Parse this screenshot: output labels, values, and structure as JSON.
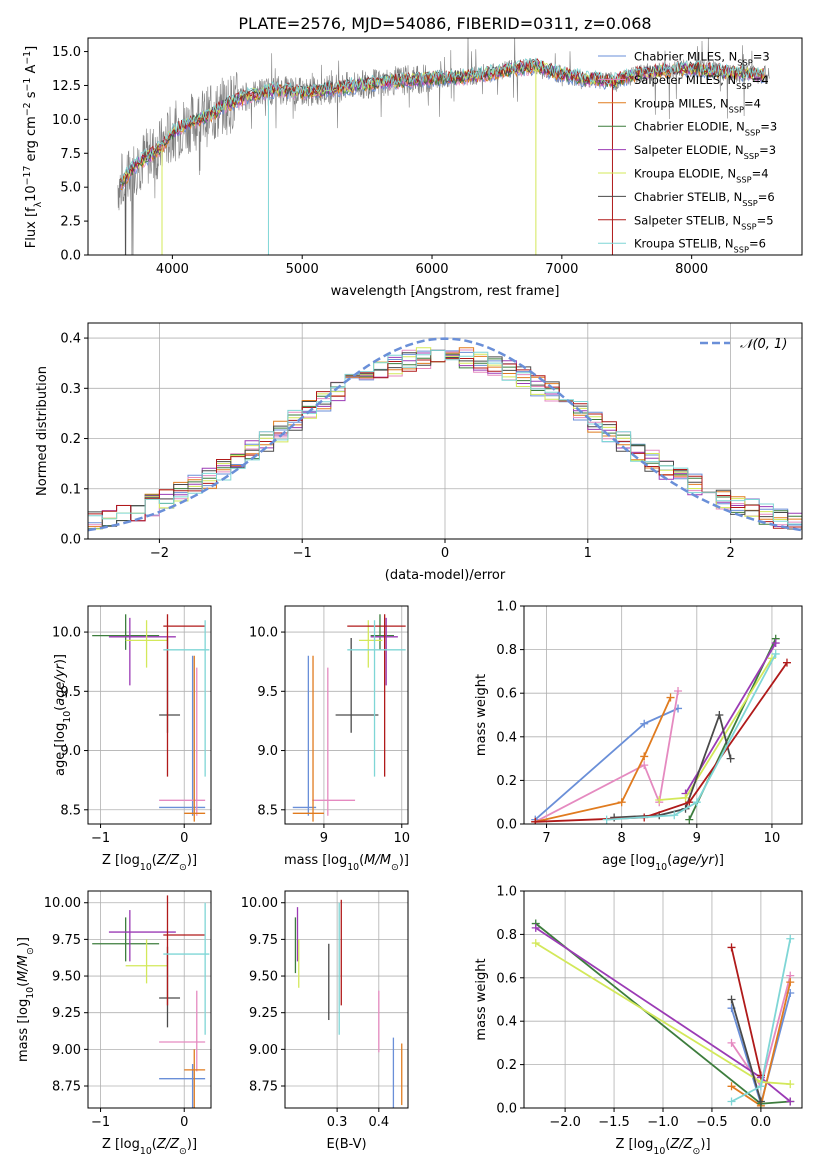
{
  "title": "PLATE=2576, MJD=54086, FIBERID=0311, z=0.068",
  "colors": {
    "Chabrier MILES": "#6a8fd8",
    "Salpeter MILES": "#e58ac0",
    "Kroupa MILES": "#e07b1f",
    "Chabrier ELODIE": "#3d7d3d",
    "Salpeter ELODIE": "#9b3bb5",
    "Kroupa ELODIE": "#d3e85a",
    "Chabrier STELIB": "#4a4a4a",
    "Salpeter STELIB": "#b01a1a",
    "Kroupa STELIB": "#7fd6d6",
    "data": "#808080",
    "normal": "#6a8fd8"
  },
  "chart_data": [
    {
      "id": "spectrum",
      "type": "line",
      "xlabel": "wavelength [Angstrom, rest frame]",
      "ylabel": "Flux [f_λ10^-17 erg cm^-2 s^-1 A^-1]",
      "xlim": [
        3350,
        8850
      ],
      "ylim": [
        0,
        16
      ],
      "grid": false,
      "legend": "right",
      "xticks": [
        4000,
        5000,
        6000,
        7000,
        8000
      ],
      "yticks": [
        0.0,
        2.5,
        5.0,
        7.5,
        10.0,
        12.5,
        15.0
      ],
      "legend_entries": [
        "Chabrier MILES, N_SSP=3",
        "Salpeter MILES, N_SSP=4",
        "Kroupa MILES, N_SSP=4",
        "Chabrier ELODIE, N_SSP=3",
        "Salpeter ELODIE, N_SSP=3",
        "Kroupa ELODIE, N_SSP=4",
        "Chabrier STELIB, N_SSP=6",
        "Salpeter STELIB, N_SSP=5",
        "Kroupa STELIB, N_SSP=6"
      ],
      "model_continuum": {
        "x": [
          3600,
          3700,
          3800,
          3900,
          4000,
          4100,
          4200,
          4300,
          4400,
          4600,
          4800,
          5000,
          5200,
          5400,
          5600,
          5800,
          6000,
          6200,
          6400,
          6600,
          6800,
          7000,
          7200,
          7400,
          7600,
          7800,
          8000,
          8200,
          8500
        ],
        "y": [
          5.2,
          6.5,
          7.2,
          7.8,
          9.0,
          9.6,
          10.0,
          10.3,
          11.0,
          11.8,
          12.2,
          12.0,
          12.2,
          12.5,
          12.7,
          12.9,
          13.0,
          13.1,
          13.3,
          13.7,
          13.9,
          13.3,
          13.0,
          12.8,
          13.4,
          13.6,
          13.8,
          13.5,
          13.3
        ]
      }
    },
    {
      "id": "residuals",
      "type": "line",
      "xlabel": "(data-model)/error",
      "ylabel": "Normed distribution",
      "xlim": [
        -2.5,
        2.5
      ],
      "ylim": [
        0,
        0.43
      ],
      "grid": true,
      "legend": "top-right",
      "xticks": [
        -2,
        -1,
        0,
        1,
        2
      ],
      "yticks": [
        0.0,
        0.1,
        0.2,
        0.3,
        0.4
      ],
      "legend_entries": [
        "𝒩(0, 1)"
      ]
    },
    {
      "id": "age-Z",
      "type": "scatter",
      "xlabel": "Z [log10(Z/Z⊙)]",
      "ylabel": "age  [log10(age/yr)]",
      "xlim": [
        -1.15,
        0.32
      ],
      "ylim": [
        8.38,
        10.22
      ],
      "grid": true,
      "xticks": [
        -1,
        0
      ],
      "yticks": [
        8.5,
        9.0,
        9.5,
        10.0
      ],
      "points": [
        {
          "model": "Chabrier MILES",
          "x": 0.1,
          "y": 8.52,
          "xlo": -0.3,
          "xhi": 0.25,
          "ylo": 8.45,
          "yhi": 9.8
        },
        {
          "model": "Salpeter MILES",
          "x": 0.15,
          "y": 8.58,
          "xlo": -0.3,
          "xhi": 0.25,
          "ylo": 8.45,
          "yhi": 9.7
        },
        {
          "model": "Kroupa MILES",
          "x": 0.12,
          "y": 8.47,
          "xlo": 0.0,
          "xhi": 0.25,
          "ylo": 8.4,
          "yhi": 9.8
        },
        {
          "model": "Chabrier ELODIE",
          "x": -0.7,
          "y": 9.97,
          "xlo": -1.1,
          "xhi": -0.3,
          "ylo": 9.85,
          "yhi": 10.15
        },
        {
          "model": "Salpeter ELODIE",
          "x": -0.65,
          "y": 9.96,
          "xlo": -0.9,
          "xhi": -0.1,
          "ylo": 9.55,
          "yhi": 10.12
        },
        {
          "model": "Kroupa ELODIE",
          "x": -0.45,
          "y": 9.93,
          "xlo": -0.7,
          "xhi": -0.2,
          "ylo": 9.7,
          "yhi": 10.1
        },
        {
          "model": "Chabrier STELIB",
          "x": -0.2,
          "y": 9.3,
          "xlo": -0.3,
          "xhi": -0.05,
          "ylo": 9.15,
          "yhi": 9.95
        },
        {
          "model": "Salpeter STELIB",
          "x": -0.2,
          "y": 10.05,
          "xlo": -0.25,
          "xhi": 0.25,
          "ylo": 8.78,
          "yhi": 10.15
        },
        {
          "model": "Kroupa STELIB",
          "x": 0.25,
          "y": 9.85,
          "xlo": -0.25,
          "xhi": 0.3,
          "ylo": 8.78,
          "yhi": 10.1
        }
      ]
    },
    {
      "id": "age-mass",
      "type": "scatter",
      "xlabel": "mass [log10(M/M⊙)]",
      "ylabel": "",
      "xlim": [
        8.5,
        10.08
      ],
      "ylim": [
        8.38,
        10.22
      ],
      "grid": true,
      "xticks": [
        9,
        10
      ],
      "yticks": [
        8.5,
        9.0,
        9.5,
        10.0
      ],
      "points": [
        {
          "model": "Chabrier MILES",
          "x": 8.8,
          "y": 8.52,
          "xlo": 8.6,
          "xhi": 8.9,
          "ylo": 8.45,
          "yhi": 9.8
        },
        {
          "model": "Salpeter MILES",
          "x": 9.05,
          "y": 8.58,
          "xlo": 8.85,
          "xhi": 9.4,
          "ylo": 8.45,
          "yhi": 9.7
        },
        {
          "model": "Kroupa MILES",
          "x": 8.86,
          "y": 8.47,
          "xlo": 8.6,
          "xhi": 9.0,
          "ylo": 8.4,
          "yhi": 9.8
        },
        {
          "model": "Chabrier ELODIE",
          "x": 9.72,
          "y": 9.97,
          "xlo": 9.6,
          "xhi": 9.9,
          "ylo": 9.85,
          "yhi": 10.15
        },
        {
          "model": "Salpeter ELODIE",
          "x": 9.8,
          "y": 9.96,
          "xlo": 9.6,
          "xhi": 9.95,
          "ylo": 9.55,
          "yhi": 10.12
        },
        {
          "model": "Kroupa ELODIE",
          "x": 9.57,
          "y": 9.93,
          "xlo": 9.45,
          "xhi": 9.75,
          "ylo": 9.7,
          "yhi": 10.1
        },
        {
          "model": "Chabrier STELIB",
          "x": 9.35,
          "y": 9.3,
          "xlo": 9.15,
          "xhi": 9.7,
          "ylo": 9.15,
          "yhi": 9.95
        },
        {
          "model": "Salpeter STELIB",
          "x": 9.78,
          "y": 10.05,
          "xlo": 9.3,
          "xhi": 10.05,
          "ylo": 8.78,
          "yhi": 10.15
        },
        {
          "model": "Kroupa STELIB",
          "x": 9.65,
          "y": 9.85,
          "xlo": 9.3,
          "xhi": 10.05,
          "ylo": 8.78,
          "yhi": 10.1
        }
      ]
    },
    {
      "id": "weight-age",
      "type": "line",
      "xlabel": "age  [log10(age/yr)]",
      "ylabel": "mass weight",
      "xlim": [
        6.7,
        10.4
      ],
      "ylim": [
        0,
        1.0
      ],
      "grid": true,
      "xticks": [
        7,
        8,
        9,
        10
      ],
      "yticks": [
        0.0,
        0.2,
        0.4,
        0.6,
        0.8,
        1.0
      ],
      "series": [
        {
          "name": "Chabrier MILES",
          "x": [
            6.85,
            8.3,
            8.75
          ],
          "y": [
            0.02,
            0.46,
            0.53
          ]
        },
        {
          "name": "Salpeter MILES",
          "x": [
            6.85,
            8.3,
            8.5,
            8.75
          ],
          "y": [
            0.01,
            0.27,
            0.1,
            0.61
          ]
        },
        {
          "name": "Kroupa MILES",
          "x": [
            6.85,
            8.0,
            8.3,
            8.65
          ],
          "y": [
            0.01,
            0.1,
            0.31,
            0.58
          ]
        },
        {
          "name": "Chabrier ELODIE",
          "x": [
            8.9,
            10.05
          ],
          "y": [
            0.02,
            0.85
          ]
        },
        {
          "name": "Salpeter ELODIE",
          "x": [
            8.85,
            10.05
          ],
          "y": [
            0.14,
            0.83
          ]
        },
        {
          "name": "Kroupa ELODIE",
          "x": [
            8.5,
            8.85,
            10.0
          ],
          "y": [
            0.11,
            0.12,
            0.76
          ]
        },
        {
          "name": "Chabrier STELIB",
          "x": [
            7.9,
            8.5,
            8.85,
            9.3,
            9.45
          ],
          "y": [
            0.03,
            0.04,
            0.07,
            0.5,
            0.3
          ]
        },
        {
          "name": "Salpeter STELIB",
          "x": [
            6.85,
            8.3,
            8.9,
            10.2
          ],
          "y": [
            0.01,
            0.03,
            0.1,
            0.74
          ]
        },
        {
          "name": "Kroupa STELIB",
          "x": [
            7.8,
            8.7,
            9.0,
            10.05
          ],
          "y": [
            0.02,
            0.04,
            0.1,
            0.78
          ]
        }
      ]
    },
    {
      "id": "mass-Z",
      "type": "scatter",
      "xlabel": "Z [log10(Z/Z⊙)]",
      "ylabel": "mass [log10(M/M⊙)]",
      "xlim": [
        -1.15,
        0.32
      ],
      "ylim": [
        8.6,
        10.08
      ],
      "grid": true,
      "xticks": [
        -1,
        0
      ],
      "yticks": [
        8.75,
        9.0,
        9.25,
        9.5,
        9.75,
        10.0
      ],
      "points": [
        {
          "model": "Chabrier MILES",
          "x": 0.1,
          "y": 8.8,
          "xlo": -0.3,
          "xhi": 0.25,
          "ylo": 8.6,
          "yhi": 8.9
        },
        {
          "model": "Salpeter MILES",
          "x": 0.15,
          "y": 9.05,
          "xlo": -0.3,
          "xhi": 0.25,
          "ylo": 8.85,
          "yhi": 9.4
        },
        {
          "model": "Kroupa MILES",
          "x": 0.12,
          "y": 8.86,
          "xlo": 0.0,
          "xhi": 0.25,
          "ylo": 8.6,
          "yhi": 9.0
        },
        {
          "model": "Chabrier ELODIE",
          "x": -0.7,
          "y": 9.72,
          "xlo": -1.1,
          "xhi": -0.3,
          "ylo": 9.6,
          "yhi": 9.9
        },
        {
          "model": "Salpeter ELODIE",
          "x": -0.65,
          "y": 9.8,
          "xlo": -0.9,
          "xhi": -0.1,
          "ylo": 9.6,
          "yhi": 9.95
        },
        {
          "model": "Kroupa ELODIE",
          "x": -0.45,
          "y": 9.57,
          "xlo": -0.7,
          "xhi": -0.2,
          "ylo": 9.45,
          "yhi": 9.75
        },
        {
          "model": "Chabrier STELIB",
          "x": -0.2,
          "y": 9.35,
          "xlo": -0.3,
          "xhi": -0.05,
          "ylo": 9.15,
          "yhi": 9.7
        },
        {
          "model": "Salpeter STELIB",
          "x": -0.2,
          "y": 9.78,
          "xlo": -0.25,
          "xhi": 0.25,
          "ylo": 9.3,
          "yhi": 10.05
        },
        {
          "model": "Kroupa STELIB",
          "x": 0.25,
          "y": 9.65,
          "xlo": -0.25,
          "xhi": 0.3,
          "ylo": 9.1,
          "yhi": 10.0
        }
      ]
    },
    {
      "id": "mass-EBV",
      "type": "scatter",
      "xlabel": "E(B-V)",
      "ylabel": "",
      "xlim": [
        0.175,
        0.47
      ],
      "ylim": [
        8.6,
        10.08
      ],
      "grid": true,
      "xticks": [
        0.3,
        0.4
      ],
      "yticks": [
        8.75,
        9.0,
        9.25,
        9.5,
        9.75,
        10.0
      ],
      "points": [
        {
          "model": "Chabrier MILES",
          "x": 0.435,
          "y": 8.8,
          "ylo": 8.6,
          "yhi": 9.08
        },
        {
          "model": "Salpeter MILES",
          "x": 0.4,
          "y": 9.05,
          "ylo": 8.98,
          "yhi": 9.4
        },
        {
          "model": "Kroupa MILES",
          "x": 0.455,
          "y": 8.86,
          "ylo": 8.62,
          "yhi": 9.04
        },
        {
          "model": "Chabrier ELODIE",
          "x": 0.2,
          "y": 9.72,
          "ylo": 9.52,
          "yhi": 9.9
        },
        {
          "model": "Salpeter ELODIE",
          "x": 0.205,
          "y": 9.8,
          "ylo": 9.6,
          "yhi": 9.97
        },
        {
          "model": "Kroupa ELODIE",
          "x": 0.208,
          "y": 9.57,
          "ylo": 9.42,
          "yhi": 9.75
        },
        {
          "model": "Chabrier STELIB",
          "x": 0.28,
          "y": 9.35,
          "ylo": 9.2,
          "yhi": 9.72
        },
        {
          "model": "Salpeter STELIB",
          "x": 0.31,
          "y": 9.78,
          "ylo": 9.3,
          "yhi": 10.02
        },
        {
          "model": "Kroupa STELIB",
          "x": 0.305,
          "y": 9.65,
          "ylo": 9.1,
          "yhi": 10.0
        }
      ]
    },
    {
      "id": "weight-Z",
      "type": "line",
      "xlabel": "Z [log10(Z/Z⊙)]",
      "ylabel": "mass weight",
      "xlim": [
        -2.42,
        0.42
      ],
      "ylim": [
        0,
        1.0
      ],
      "grid": true,
      "xticks": [
        -2.0,
        -1.5,
        -1.0,
        -0.5,
        0.0
      ],
      "yticks": [
        0.0,
        0.2,
        0.4,
        0.6,
        0.8,
        1.0
      ],
      "series": [
        {
          "name": "Chabrier MILES",
          "x": [
            -0.3,
            0.0,
            0.3
          ],
          "y": [
            0.46,
            0.02,
            0.53
          ]
        },
        {
          "name": "Salpeter MILES",
          "x": [
            -0.3,
            0.0,
            0.3
          ],
          "y": [
            0.3,
            0.1,
            0.61
          ]
        },
        {
          "name": "Kroupa MILES",
          "x": [
            -0.3,
            0.0,
            0.3
          ],
          "y": [
            0.1,
            0.01,
            0.58
          ]
        },
        {
          "name": "Chabrier ELODIE",
          "x": [
            -2.3,
            0.0,
            0.3
          ],
          "y": [
            0.85,
            0.02,
            0.03
          ]
        },
        {
          "name": "Salpeter ELODIE",
          "x": [
            -2.3,
            0.0,
            0.3
          ],
          "y": [
            0.83,
            0.14,
            0.03
          ]
        },
        {
          "name": "Kroupa ELODIE",
          "x": [
            -2.3,
            0.0,
            0.3
          ],
          "y": [
            0.76,
            0.12,
            0.11
          ]
        },
        {
          "name": "Chabrier STELIB",
          "x": [
            -0.3,
            0.0
          ],
          "y": [
            0.5,
            0.03
          ]
        },
        {
          "name": "Salpeter STELIB",
          "x": [
            -0.3,
            0.0
          ],
          "y": [
            0.74,
            0.15
          ]
        },
        {
          "name": "Kroupa STELIB",
          "x": [
            -0.3,
            0.0,
            0.3
          ],
          "y": [
            0.03,
            0.1,
            0.78
          ]
        }
      ]
    }
  ]
}
